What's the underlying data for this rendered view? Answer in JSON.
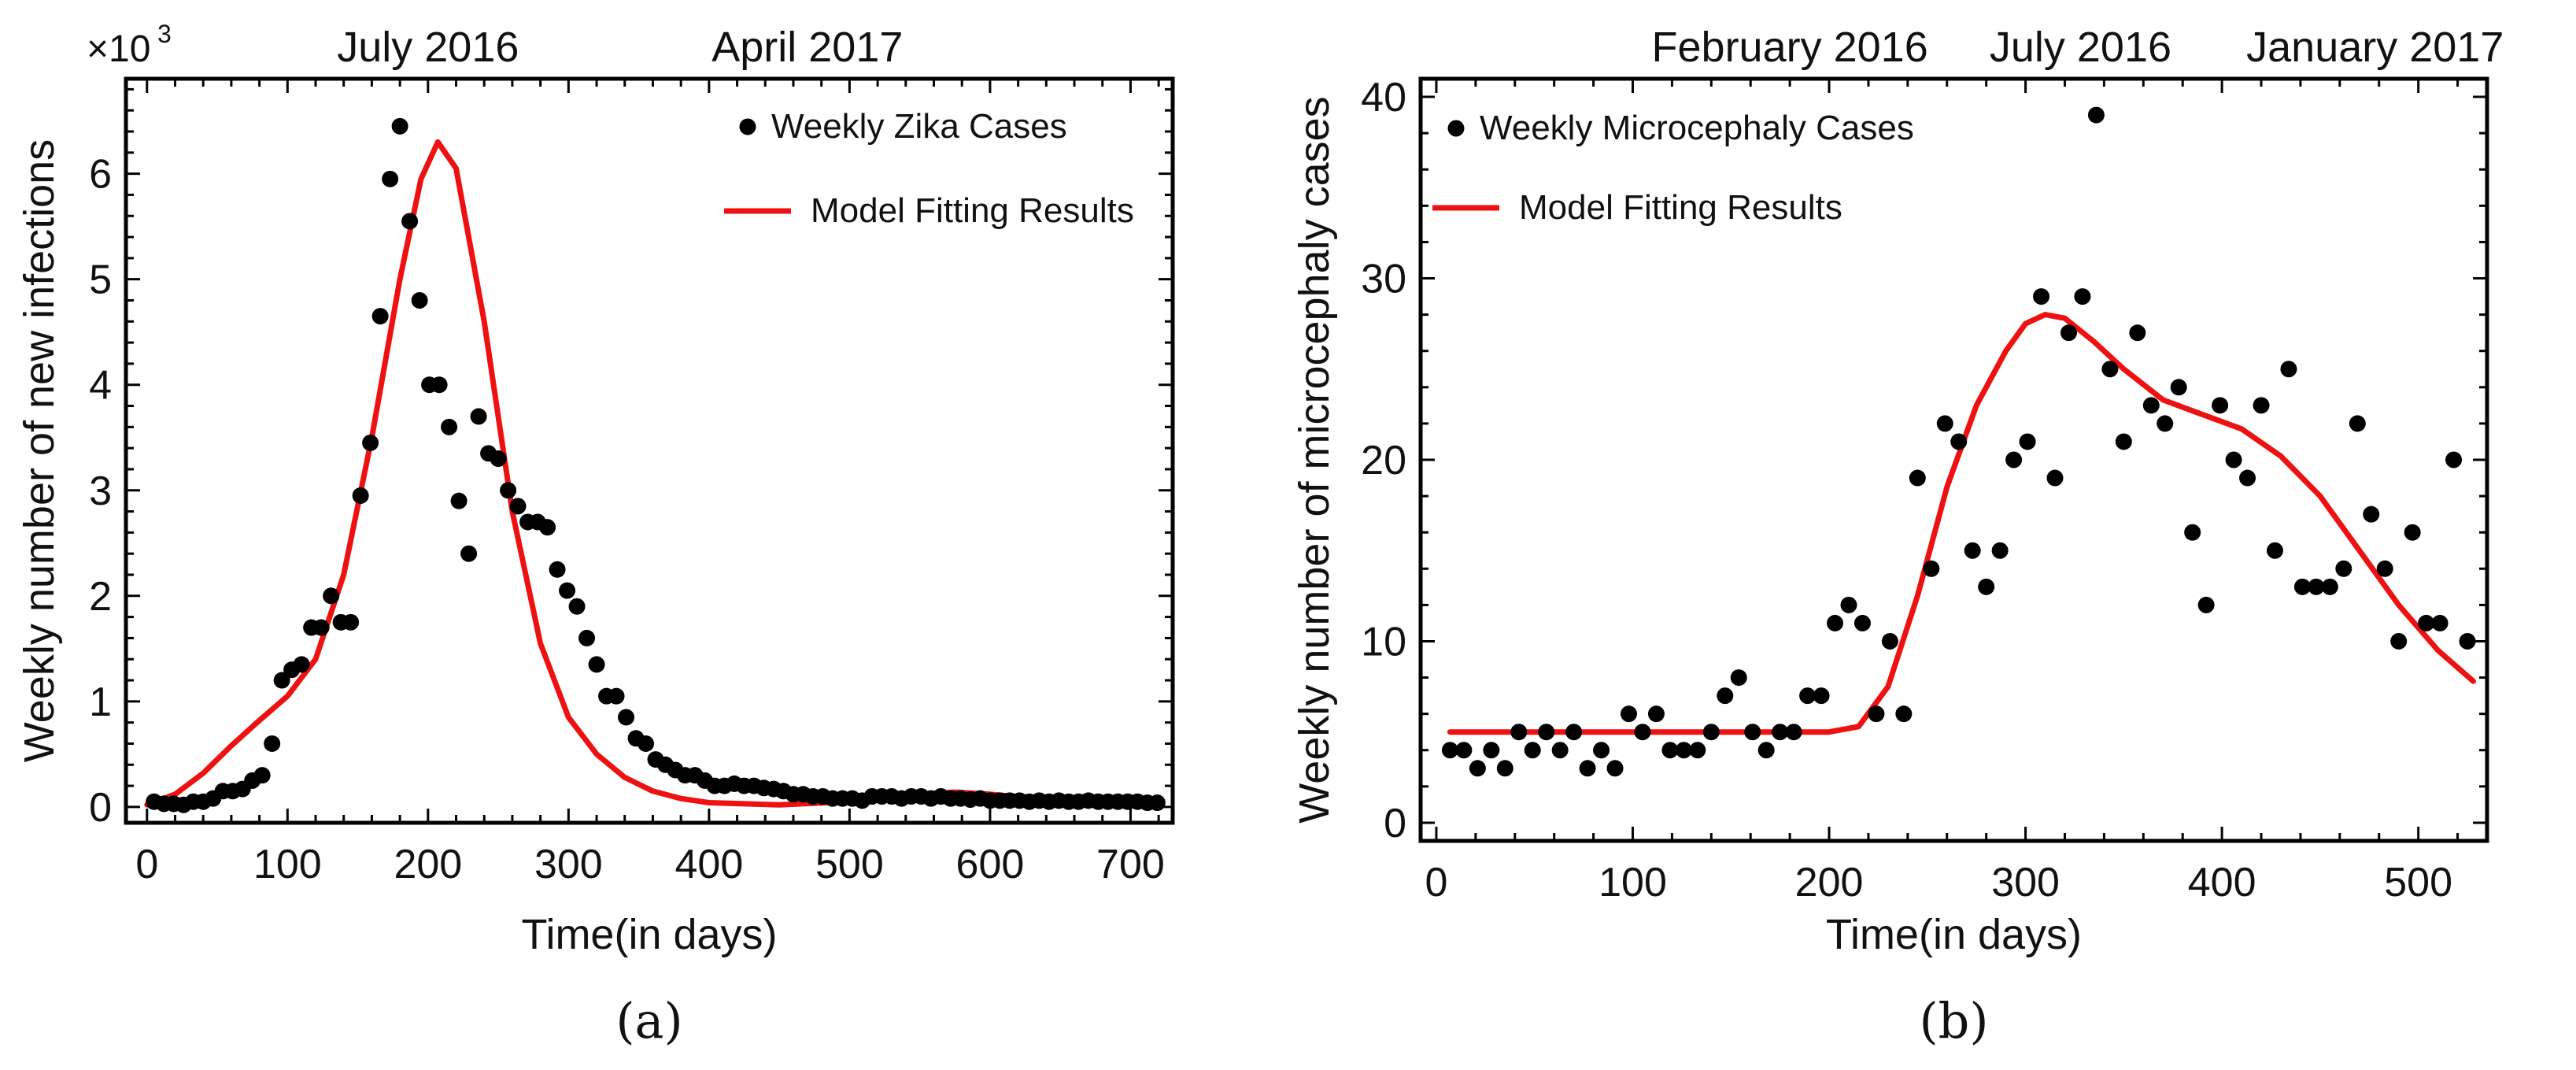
{
  "colors": {
    "points": "#000000",
    "model": "#ee1111",
    "axes": "#000000"
  },
  "chart_data": [
    {
      "type": "scatter",
      "panel_label": "(a)",
      "xlabel": "Time(in days)",
      "ylabel": "Weekly number of new infections",
      "y_multiplier": "×10",
      "y_multiplier_exp": "3",
      "xlim": [
        -15,
        730
      ],
      "ylim": [
        -0.15,
        6.9
      ],
      "xticks": [
        0,
        100,
        200,
        300,
        400,
        500,
        600,
        700
      ],
      "yticks": [
        0,
        1,
        2,
        3,
        4,
        5,
        6
      ],
      "top_labels": [
        {
          "text": "July 2016",
          "x": 200
        },
        {
          "text": "April 2017",
          "x": 470
        }
      ],
      "legend": [
        {
          "kind": "marker",
          "text": "Weekly Zika Cases"
        },
        {
          "kind": "line",
          "text": "Model Fitting Results"
        }
      ],
      "legend_position": "top-right",
      "series": [
        {
          "name": "Weekly Zika Cases",
          "kind": "points",
          "x": [
            5,
            12,
            19,
            26,
            33,
            40,
            47,
            54,
            61,
            68,
            75,
            82,
            89,
            96,
            103,
            110,
            117,
            124,
            131,
            138,
            145,
            152,
            159,
            166,
            173,
            180,
            187,
            194,
            201,
            208,
            215,
            222,
            229,
            236,
            243,
            250,
            257,
            264,
            271,
            278,
            285,
            292,
            299,
            306,
            313,
            320,
            327,
            334,
            341,
            348,
            355,
            362,
            369,
            376,
            383,
            390,
            397,
            404,
            411,
            418,
            425,
            432,
            439,
            446,
            453,
            460,
            467,
            474,
            481,
            488,
            495,
            502,
            509,
            516,
            523,
            530,
            537,
            544,
            551,
            558,
            565,
            572,
            579,
            586,
            593,
            600,
            607,
            614,
            621,
            628,
            635,
            642,
            649,
            656,
            663,
            670,
            677,
            684,
            691,
            698,
            705,
            712,
            719
          ],
          "y": [
            0.05,
            0.03,
            0.03,
            0.02,
            0.05,
            0.05,
            0.08,
            0.15,
            0.15,
            0.17,
            0.25,
            0.3,
            0.6,
            1.2,
            1.3,
            1.35,
            1.7,
            1.7,
            2.0,
            1.75,
            1.75,
            2.95,
            3.45,
            4.65,
            5.95,
            6.45,
            5.55,
            4.8,
            4.0,
            4.0,
            3.6,
            2.9,
            2.4,
            3.7,
            3.35,
            3.3,
            3.0,
            2.85,
            2.7,
            2.7,
            2.65,
            2.25,
            2.05,
            1.9,
            1.6,
            1.35,
            1.05,
            1.05,
            0.85,
            0.65,
            0.6,
            0.45,
            0.4,
            0.35,
            0.3,
            0.3,
            0.25,
            0.2,
            0.2,
            0.22,
            0.2,
            0.2,
            0.18,
            0.17,
            0.15,
            0.12,
            0.12,
            0.1,
            0.1,
            0.08,
            0.08,
            0.08,
            0.06,
            0.1,
            0.1,
            0.1,
            0.08,
            0.1,
            0.1,
            0.08,
            0.1,
            0.08,
            0.08,
            0.07,
            0.08,
            0.06,
            0.06,
            0.06,
            0.06,
            0.05,
            0.06,
            0.05,
            0.06,
            0.05,
            0.05,
            0.06,
            0.05,
            0.05,
            0.05,
            0.05,
            0.05,
            0.04,
            0.04
          ]
        },
        {
          "name": "Model Fitting Results",
          "kind": "line",
          "x": [
            0,
            20,
            40,
            60,
            80,
            100,
            120,
            140,
            160,
            180,
            195,
            207,
            220,
            240,
            260,
            280,
            300,
            320,
            340,
            360,
            380,
            400,
            450,
            500,
            550,
            575,
            600,
            650,
            700,
            720
          ],
          "y": [
            0.02,
            0.12,
            0.32,
            0.58,
            0.82,
            1.05,
            1.4,
            2.2,
            3.5,
            5.0,
            5.95,
            6.3,
            6.05,
            4.6,
            2.8,
            1.55,
            0.85,
            0.5,
            0.28,
            0.15,
            0.08,
            0.04,
            0.02,
            0.05,
            0.12,
            0.14,
            0.12,
            0.06,
            0.04,
            0.04
          ]
        }
      ]
    },
    {
      "type": "scatter",
      "panel_label": "(b)",
      "xlabel": "Time(in days)",
      "ylabel": "Weekly number of microcephaly cases",
      "xlim": [
        -8,
        535
      ],
      "ylim": [
        -1,
        41
      ],
      "xticks": [
        0,
        100,
        200,
        300,
        400,
        500
      ],
      "yticks": [
        0,
        10,
        20,
        30,
        40
      ],
      "top_labels": [
        {
          "text": "February 2016",
          "x": 180
        },
        {
          "text": "July 2016",
          "x": 328
        },
        {
          "text": "January 2017",
          "x": 478
        }
      ],
      "legend": [
        {
          "kind": "marker",
          "text": "Weekly Microcephaly Cases"
        },
        {
          "kind": "line",
          "text": "Model Fitting Results"
        }
      ],
      "legend_position": "top-left",
      "series": [
        {
          "name": "Weekly Microcephaly Cases",
          "kind": "points",
          "x": [
            7,
            14,
            21,
            28,
            35,
            42,
            49,
            56,
            63,
            70,
            77,
            84,
            91,
            98,
            105,
            112,
            119,
            126,
            133,
            140,
            147,
            154,
            161,
            168,
            175,
            182,
            189,
            196,
            203,
            210,
            217,
            224,
            231,
            238,
            245,
            252,
            259,
            266,
            273,
            280,
            287,
            294,
            301,
            308,
            315,
            322,
            329,
            336,
            343,
            350,
            357,
            364,
            371,
            378,
            385,
            392,
            399,
            406,
            413,
            420,
            427,
            434,
            441,
            448,
            455,
            462,
            469,
            476,
            483,
            490,
            497,
            504,
            511,
            518,
            525
          ],
          "y": [
            4,
            4,
            3,
            4,
            3,
            5,
            4,
            5,
            4,
            5,
            3,
            4,
            3,
            6,
            5,
            6,
            4,
            4,
            4,
            5,
            7,
            8,
            5,
            4,
            5,
            5,
            7,
            7,
            11,
            12,
            11,
            6,
            10,
            6,
            19,
            14,
            22,
            21,
            15,
            13,
            15,
            20,
            21,
            29,
            19,
            27,
            29,
            39,
            25,
            21,
            27,
            23,
            22,
            24,
            16,
            12,
            23,
            20,
            19,
            23,
            15,
            25,
            13,
            13,
            13,
            14,
            22,
            17,
            14,
            10,
            16,
            11,
            11,
            20,
            10
          ]
        },
        {
          "name": "Model Fitting Results",
          "kind": "line",
          "x": [
            7,
            100,
            200,
            215,
            230,
            245,
            260,
            275,
            290,
            300,
            310,
            320,
            335,
            350,
            370,
            390,
            410,
            430,
            450,
            470,
            490,
            510,
            528
          ],
          "y": [
            5,
            5,
            5,
            5.3,
            7.5,
            12.5,
            18.5,
            23,
            26,
            27.5,
            28,
            27.8,
            26.5,
            25,
            23.3,
            22.5,
            21.7,
            20.2,
            18,
            15,
            12,
            9.5,
            7.8
          ]
        }
      ]
    }
  ]
}
